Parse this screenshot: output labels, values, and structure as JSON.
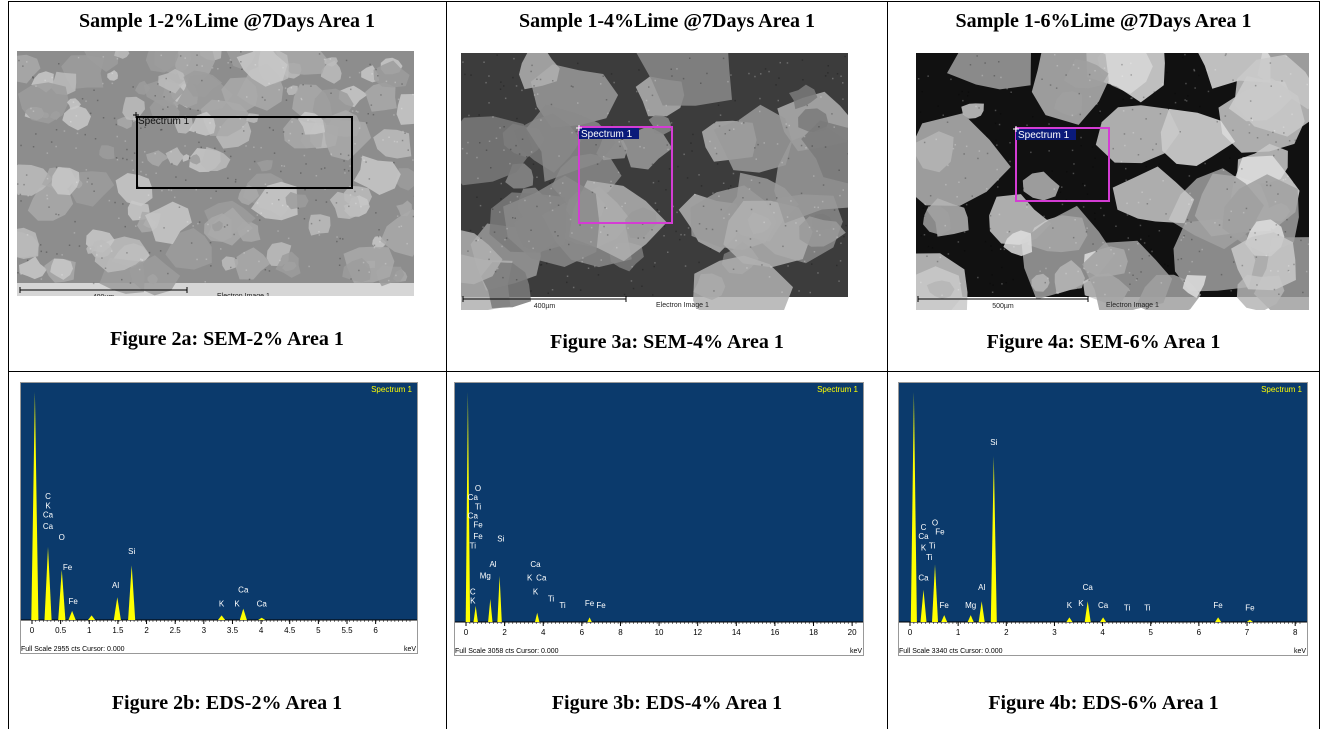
{
  "columns": [
    {
      "title": "Sample 1-2%Lime @7Days Area 1",
      "sem_caption": "Figure 2a: SEM-2% Area 1",
      "eds_caption": "Figure 2b: EDS-2% Area 1",
      "sem": {
        "spectrum_label": "Spectrum 1",
        "scale_label": "400µm",
        "image_label": "Electron Image 1",
        "box_color": "#000000",
        "tone": "light"
      },
      "eds": {
        "spectrum_label": "Spectrum 1",
        "footer": "Full Scale 2955 cts Cursor: 0.000",
        "unit": "keV",
        "xmax": 6.6,
        "ticks": [
          "0",
          "0.5",
          "1",
          "1.5",
          "2",
          "2.5",
          "3",
          "3.5",
          "4",
          "4.5",
          "5",
          "5.5",
          "6"
        ],
        "peaks": [
          {
            "x": 0.05,
            "h": 1.0
          },
          {
            "x": 0.28,
            "h": 0.32
          },
          {
            "x": 0.52,
            "h": 0.22
          },
          {
            "x": 0.7,
            "h": 0.04
          },
          {
            "x": 1.04,
            "h": 0.02
          },
          {
            "x": 1.49,
            "h": 0.1
          },
          {
            "x": 1.74,
            "h": 0.24
          },
          {
            "x": 3.31,
            "h": 0.02
          },
          {
            "x": 3.69,
            "h": 0.05
          },
          {
            "x": 4.01,
            "h": 0.01
          }
        ],
        "element_labels": [
          {
            "text": "C",
            "x": 0.28,
            "h": 0.53
          },
          {
            "text": "K",
            "x": 0.28,
            "h": 0.49
          },
          {
            "text": "Ca",
            "x": 0.28,
            "h": 0.45
          },
          {
            "text": "Ca",
            "x": 0.28,
            "h": 0.4
          },
          {
            "text": "O",
            "x": 0.52,
            "h": 0.35
          },
          {
            "text": "Fe",
            "x": 0.62,
            "h": 0.22
          },
          {
            "text": "Fe",
            "x": 0.72,
            "h": 0.07
          },
          {
            "text": "Al",
            "x": 1.46,
            "h": 0.14
          },
          {
            "text": "Si",
            "x": 1.74,
            "h": 0.29
          },
          {
            "text": "K",
            "x": 3.31,
            "h": 0.06
          },
          {
            "text": "Ca",
            "x": 3.69,
            "h": 0.12
          },
          {
            "text": "K",
            "x": 3.58,
            "h": 0.06
          },
          {
            "text": "Ca",
            "x": 4.01,
            "h": 0.06
          }
        ]
      }
    },
    {
      "title": "Sample 1-4%Lime @7Days Area 1",
      "sem_caption": "Figure 3a: SEM-4% Area 1",
      "eds_caption": "Figure 3b: EDS-4% Area 1",
      "sem": {
        "spectrum_label": "Spectrum 1",
        "scale_label": "400µm",
        "image_label": "Electron Image 1",
        "box_color": "#d43cd4",
        "tone": "medium"
      },
      "eds": {
        "spectrum_label": "Spectrum 1",
        "footer": "Full Scale 3058 cts Cursor: 0.000",
        "unit": "keV",
        "xmax": 20.2,
        "ticks": [
          "0",
          "2",
          "4",
          "6",
          "8",
          "10",
          "12",
          "14",
          "16",
          "18",
          "20"
        ],
        "peaks": [
          {
            "x": 0.1,
            "h": 1.0
          },
          {
            "x": 0.5,
            "h": 0.07
          },
          {
            "x": 1.26,
            "h": 0.1
          },
          {
            "x": 1.74,
            "h": 0.2
          },
          {
            "x": 3.69,
            "h": 0.04
          },
          {
            "x": 6.4,
            "h": 0.02
          }
        ],
        "element_labels": [
          {
            "text": "O",
            "x": 0.62,
            "h": 0.57
          },
          {
            "text": "Ca",
            "x": 0.35,
            "h": 0.53
          },
          {
            "text": "Ti",
            "x": 0.62,
            "h": 0.49
          },
          {
            "text": "Ca",
            "x": 0.35,
            "h": 0.45
          },
          {
            "text": "Fe",
            "x": 0.62,
            "h": 0.41
          },
          {
            "text": "Fe",
            "x": 0.62,
            "h": 0.36
          },
          {
            "text": "Ti",
            "x": 0.35,
            "h": 0.32
          },
          {
            "text": "C",
            "x": 0.35,
            "h": 0.12
          },
          {
            "text": "K",
            "x": 0.35,
            "h": 0.08
          },
          {
            "text": "Al",
            "x": 1.4,
            "h": 0.24
          },
          {
            "text": "Mg",
            "x": 1.0,
            "h": 0.19
          },
          {
            "text": "Si",
            "x": 1.8,
            "h": 0.35
          },
          {
            "text": "Ca",
            "x": 3.6,
            "h": 0.24
          },
          {
            "text": "K",
            "x": 3.3,
            "h": 0.18
          },
          {
            "text": "Ca",
            "x": 3.9,
            "h": 0.18
          },
          {
            "text": "K",
            "x": 3.6,
            "h": 0.12
          },
          {
            "text": "Ti",
            "x": 4.4,
            "h": 0.09
          },
          {
            "text": "Ti",
            "x": 5.0,
            "h": 0.06
          },
          {
            "text": "Fe",
            "x": 6.4,
            "h": 0.07
          },
          {
            "text": "Fe",
            "x": 7.0,
            "h": 0.06
          }
        ]
      }
    },
    {
      "title": "Sample 1-6%Lime @7Days Area 1",
      "sem_caption": "Figure 4a: SEM-6% Area 1",
      "eds_caption": "Figure 4b: EDS-6% Area 1",
      "sem": {
        "spectrum_label": "Spectrum 1",
        "scale_label": "500µm",
        "image_label": "Electron Image 1",
        "box_color": "#d43cd4",
        "tone": "dark"
      },
      "eds": {
        "spectrum_label": "Spectrum 1",
        "footer": "Full Scale 3340 cts Cursor: 0.000",
        "unit": "keV",
        "xmax": 8.1,
        "ticks": [
          "0",
          "1",
          "2",
          "3",
          "4",
          "5",
          "6",
          "7",
          "8"
        ],
        "peaks": [
          {
            "x": 0.08,
            "h": 1.0
          },
          {
            "x": 0.28,
            "h": 0.14
          },
          {
            "x": 0.52,
            "h": 0.25
          },
          {
            "x": 0.71,
            "h": 0.03
          },
          {
            "x": 1.26,
            "h": 0.03
          },
          {
            "x": 1.49,
            "h": 0.09
          },
          {
            "x": 1.74,
            "h": 0.72
          },
          {
            "x": 3.31,
            "h": 0.02
          },
          {
            "x": 3.69,
            "h": 0.09
          },
          {
            "x": 4.01,
            "h": 0.02
          },
          {
            "x": 6.4,
            "h": 0.02
          },
          {
            "x": 7.06,
            "h": 0.01
          }
        ],
        "element_labels": [
          {
            "text": "C",
            "x": 0.28,
            "h": 0.4
          },
          {
            "text": "O",
            "x": 0.52,
            "h": 0.42
          },
          {
            "text": "Ca",
            "x": 0.28,
            "h": 0.36
          },
          {
            "text": "Fe",
            "x": 0.62,
            "h": 0.38
          },
          {
            "text": "K",
            "x": 0.28,
            "h": 0.31
          },
          {
            "text": "Ti",
            "x": 0.46,
            "h": 0.32
          },
          {
            "text": "Ti",
            "x": 0.4,
            "h": 0.27
          },
          {
            "text": "Ca",
            "x": 0.28,
            "h": 0.18
          },
          {
            "text": "Fe",
            "x": 0.71,
            "h": 0.06
          },
          {
            "text": "Mg",
            "x": 1.26,
            "h": 0.06
          },
          {
            "text": "Al",
            "x": 1.49,
            "h": 0.14
          },
          {
            "text": "Si",
            "x": 1.74,
            "h": 0.77
          },
          {
            "text": "Ca",
            "x": 3.69,
            "h": 0.14
          },
          {
            "text": "K",
            "x": 3.31,
            "h": 0.06
          },
          {
            "text": "K",
            "x": 3.55,
            "h": 0.07
          },
          {
            "text": "Ca",
            "x": 4.01,
            "h": 0.06
          },
          {
            "text": "Ti",
            "x": 4.51,
            "h": 0.05
          },
          {
            "text": "Ti",
            "x": 4.93,
            "h": 0.05
          },
          {
            "text": "Fe",
            "x": 6.4,
            "h": 0.06
          },
          {
            "text": "Fe",
            "x": 7.06,
            "h": 0.05
          }
        ]
      }
    }
  ],
  "colors": {
    "eds_background": "#0b3a6c",
    "eds_peak": "#ffff00",
    "eds_label": "#ffffff",
    "eds_footer_bg": "#ffffff",
    "magenta_box": "#d43cd4"
  }
}
